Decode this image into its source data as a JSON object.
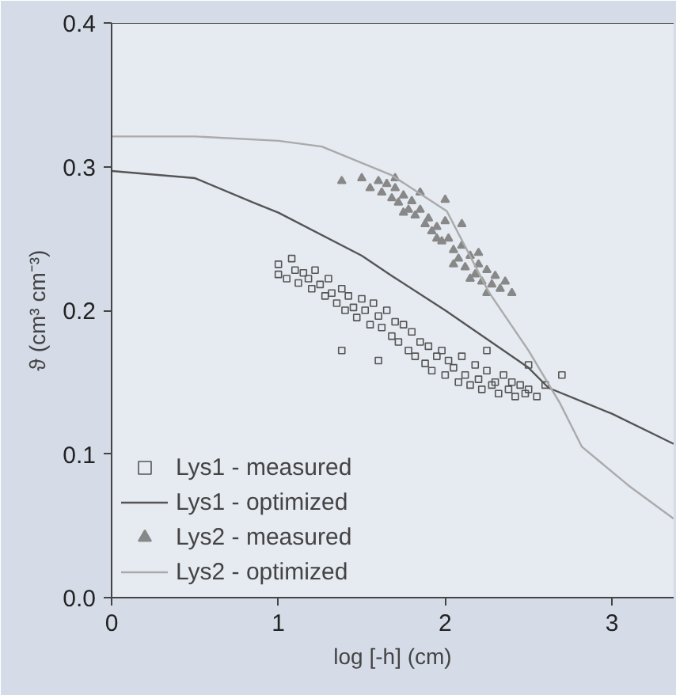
{
  "chart_data": {
    "type": "scatter",
    "xlabel": "log [-h] (cm)",
    "ylabel": "ϑ (cm³ cm⁻³)",
    "xlim": [
      0,
      3.37
    ],
    "ylim": [
      0,
      0.4
    ],
    "xticks": [
      0,
      1,
      2,
      3
    ],
    "yticks": [
      {
        "value": 0,
        "label": "0.0"
      },
      0.1,
      0.2,
      0.3,
      0.4
    ],
    "grid": false,
    "legend": "bottom left",
    "series": [
      {
        "name": "Lys1 - measured",
        "marker": "square",
        "color": "#555555",
        "x": [
          1.0,
          1.0,
          1.05,
          1.08,
          1.1,
          1.12,
          1.15,
          1.18,
          1.2,
          1.22,
          1.25,
          1.28,
          1.3,
          1.32,
          1.35,
          1.38,
          1.4,
          1.42,
          1.45,
          1.47,
          1.5,
          1.52,
          1.55,
          1.57,
          1.6,
          1.62,
          1.65,
          1.68,
          1.7,
          1.72,
          1.75,
          1.78,
          1.8,
          1.82,
          1.85,
          1.88,
          1.9,
          1.92,
          1.95,
          1.98,
          2.0,
          2.02,
          2.05,
          2.08,
          2.1,
          2.12,
          2.15,
          2.18,
          2.2,
          2.22,
          2.25,
          2.28,
          2.3,
          2.32,
          2.35,
          2.38,
          2.4,
          2.42,
          2.45,
          2.48,
          2.5,
          2.55,
          2.6,
          2.7,
          1.38,
          1.6,
          2.25,
          2.5
        ],
        "values": [
          0.232,
          0.225,
          0.222,
          0.236,
          0.228,
          0.219,
          0.226,
          0.222,
          0.215,
          0.228,
          0.218,
          0.21,
          0.222,
          0.212,
          0.205,
          0.215,
          0.2,
          0.21,
          0.202,
          0.195,
          0.208,
          0.2,
          0.19,
          0.205,
          0.196,
          0.188,
          0.2,
          0.182,
          0.192,
          0.178,
          0.19,
          0.172,
          0.185,
          0.168,
          0.178,
          0.163,
          0.175,
          0.158,
          0.168,
          0.172,
          0.155,
          0.165,
          0.16,
          0.15,
          0.168,
          0.155,
          0.148,
          0.162,
          0.152,
          0.145,
          0.158,
          0.148,
          0.15,
          0.142,
          0.155,
          0.145,
          0.15,
          0.14,
          0.148,
          0.142,
          0.145,
          0.14,
          0.148,
          0.155,
          0.172,
          0.165,
          0.172,
          0.162
        ]
      },
      {
        "name": "Lys1 - optimized",
        "type": "line",
        "color": "#555555",
        "x": [
          0,
          0.5,
          0.87,
          1.0,
          1.5,
          1.68,
          2.0,
          2.5,
          2.62,
          3.0,
          3.37
        ],
        "values": [
          0.297,
          0.292,
          0.274,
          0.268,
          0.238,
          0.224,
          0.2,
          0.16,
          0.146,
          0.128,
          0.107
        ]
      },
      {
        "name": "Lys2 - measured",
        "marker": "triangle",
        "color": "#888888",
        "x": [
          1.38,
          1.5,
          1.55,
          1.6,
          1.62,
          1.65,
          1.68,
          1.7,
          1.72,
          1.75,
          1.78,
          1.8,
          1.82,
          1.85,
          1.88,
          1.9,
          1.92,
          1.95,
          1.98,
          2.0,
          2.02,
          2.05,
          2.08,
          2.1,
          2.12,
          2.15,
          2.18,
          2.2,
          2.22,
          2.25,
          2.28,
          2.3,
          2.33,
          2.36,
          2.4,
          1.7,
          1.85,
          2.0,
          2.1,
          2.2,
          1.75,
          1.95,
          2.05,
          2.15,
          2.25
        ],
        "values": [
          0.29,
          0.292,
          0.285,
          0.29,
          0.282,
          0.288,
          0.278,
          0.285,
          0.275,
          0.28,
          0.27,
          0.276,
          0.266,
          0.27,
          0.26,
          0.264,
          0.255,
          0.258,
          0.248,
          0.277,
          0.25,
          0.242,
          0.236,
          0.245,
          0.23,
          0.238,
          0.225,
          0.232,
          0.22,
          0.228,
          0.218,
          0.224,
          0.215,
          0.22,
          0.212,
          0.292,
          0.282,
          0.262,
          0.26,
          0.24,
          0.268,
          0.25,
          0.232,
          0.222,
          0.212
        ]
      },
      {
        "name": "Lys2 - optimized",
        "type": "line",
        "color": "#aaaaaa",
        "x": [
          0,
          0.5,
          1.0,
          1.26,
          1.68,
          2.01,
          2.26,
          2.5,
          2.69,
          2.82,
          3.1,
          3.37
        ],
        "values": [
          0.321,
          0.321,
          0.318,
          0.314,
          0.294,
          0.269,
          0.213,
          0.172,
          0.135,
          0.105,
          0.078,
          0.055
        ]
      }
    ]
  }
}
